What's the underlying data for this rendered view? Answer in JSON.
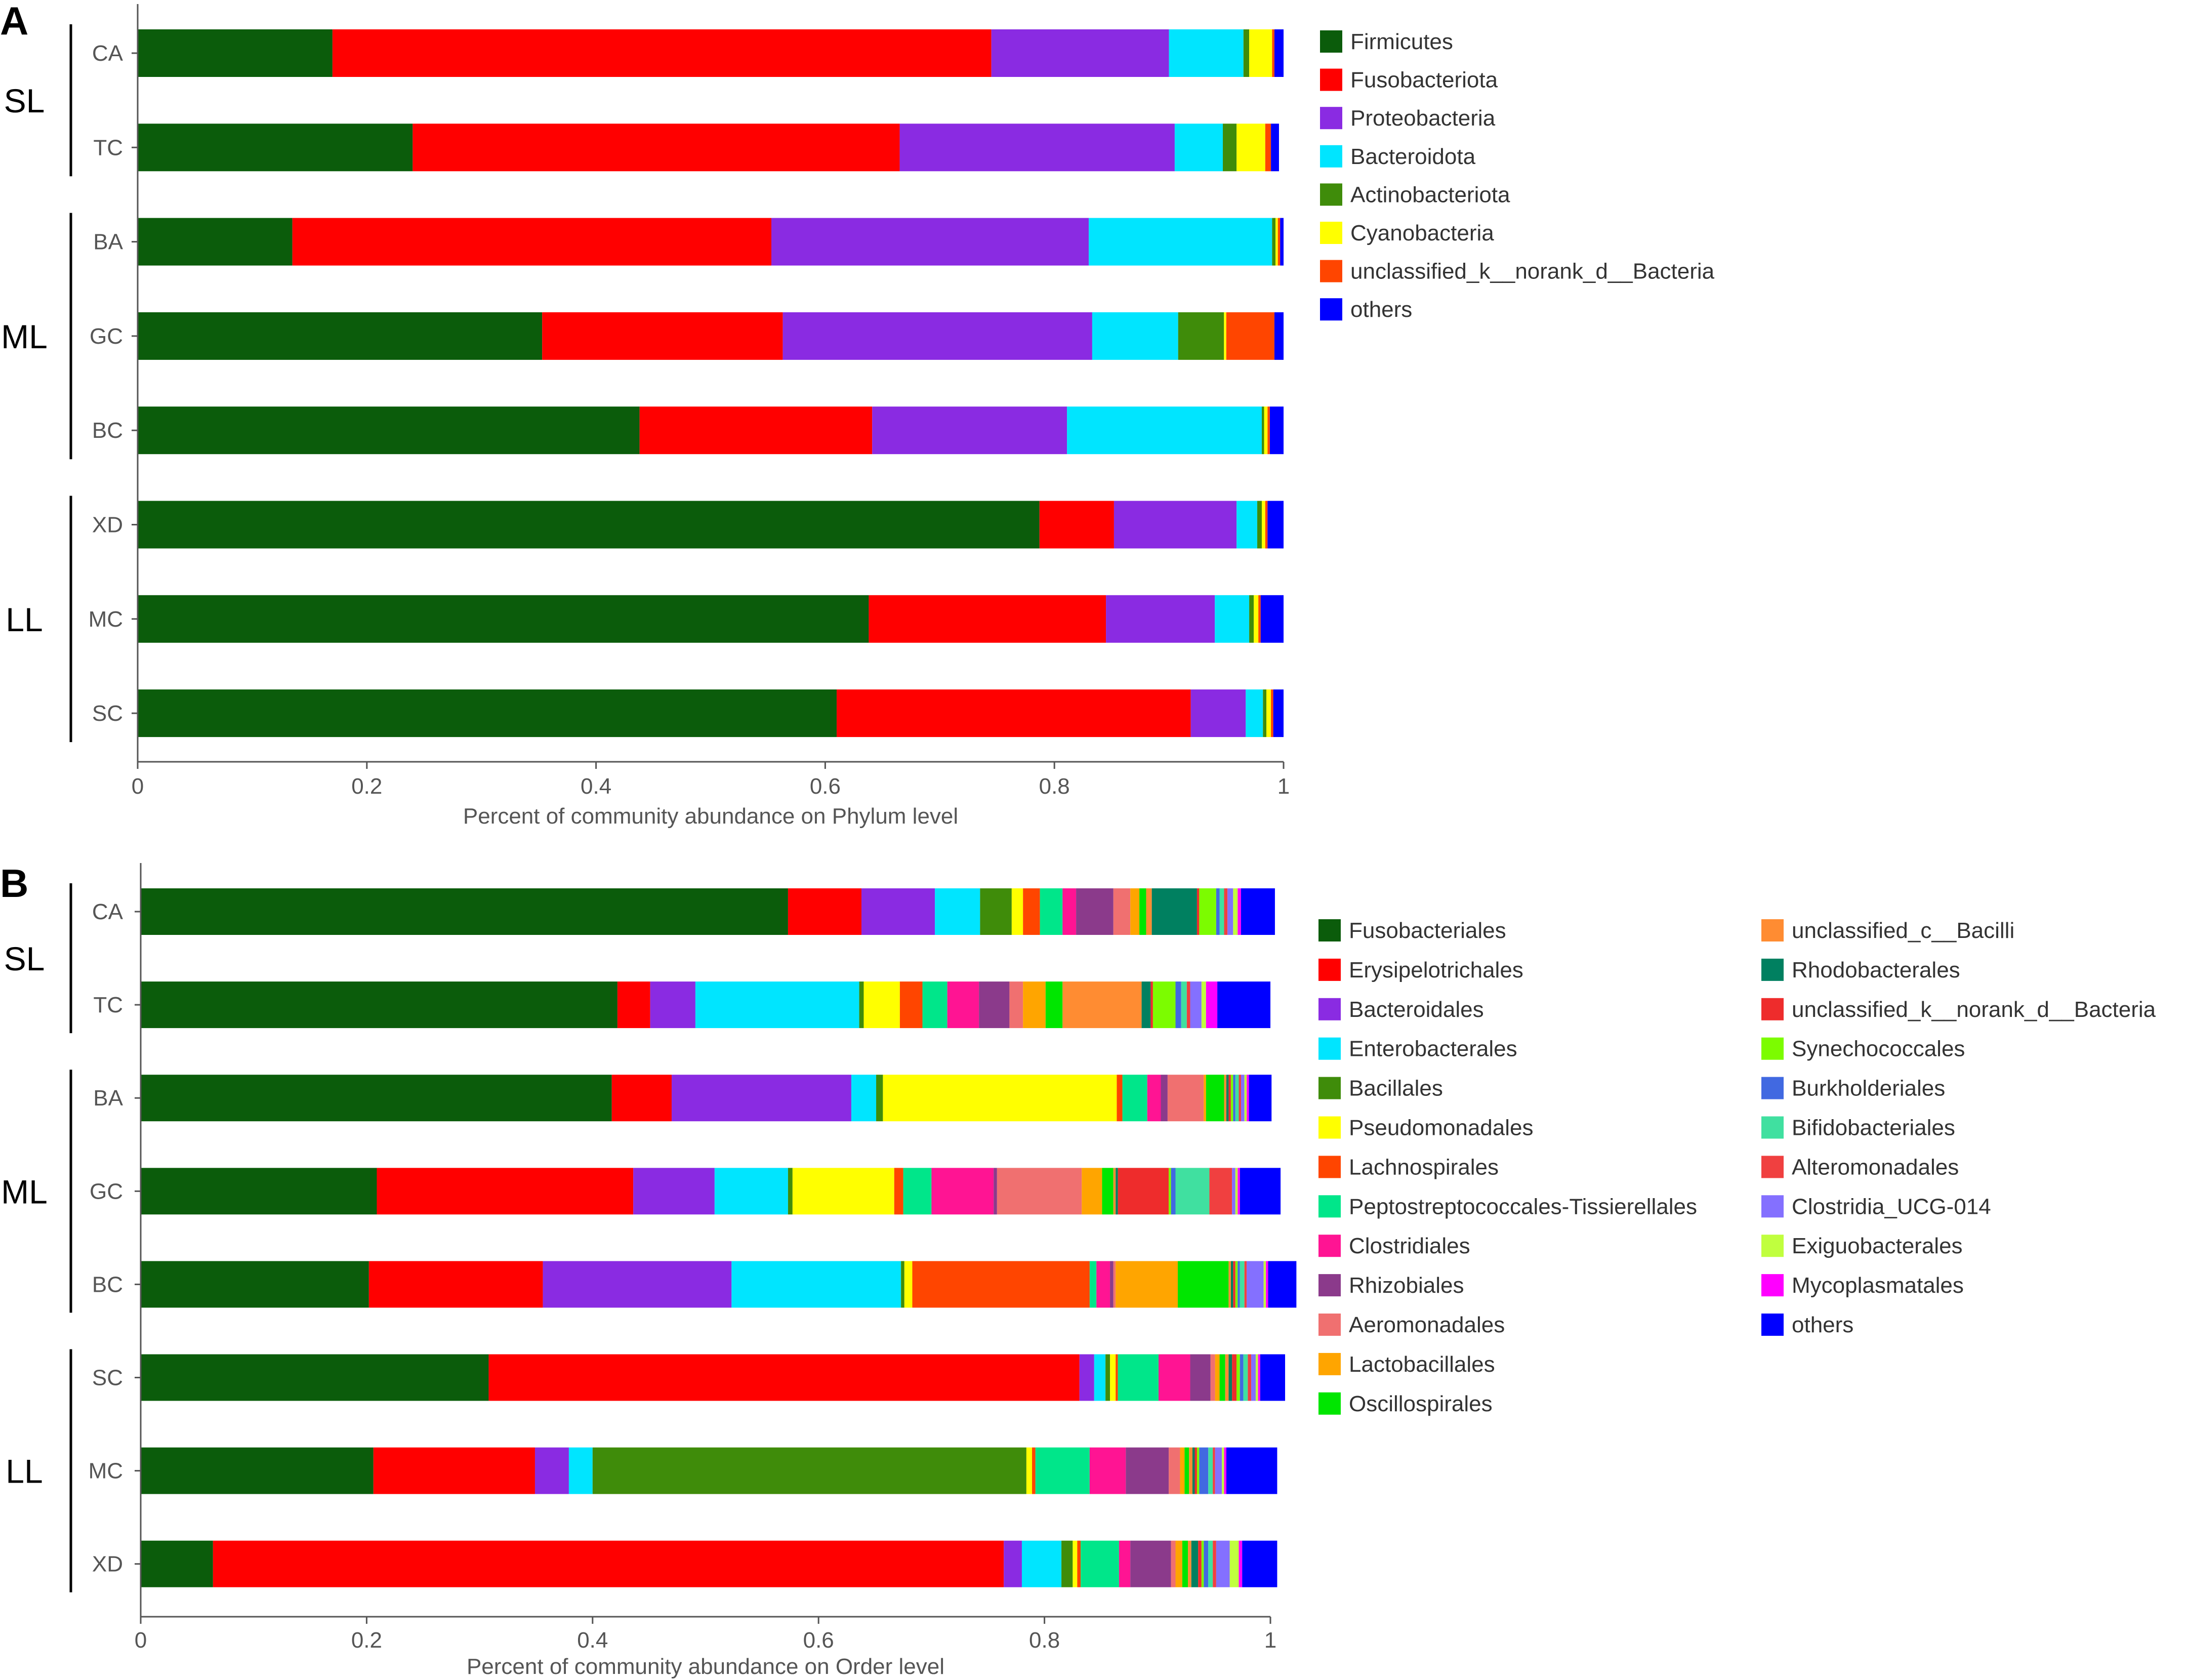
{
  "chart_data": [
    {
      "type": "bar",
      "orientation": "horizontal",
      "stacked": true,
      "panel_label": "A",
      "xlabel": "Percent of community abundance on Phylum level",
      "xlim": [
        0,
        1
      ],
      "xticks": [
        "0",
        "0.2",
        "0.4",
        "0.6",
        "0.8",
        "1"
      ],
      "categories": [
        "CA",
        "TC",
        "BA",
        "GC",
        "BC",
        "XD",
        "MC",
        "SC"
      ],
      "groups": [
        {
          "label": "SL",
          "members": [
            "CA",
            "TC"
          ]
        },
        {
          "label": "ML",
          "members": [
            "BA",
            "GC",
            "BC"
          ]
        },
        {
          "label": "LL",
          "members": [
            "XD",
            "MC",
            "SC"
          ]
        }
      ],
      "series": [
        {
          "name": "Firmicutes",
          "color": "#0b5c0b",
          "values": [
            0.17,
            0.24,
            0.135,
            0.353,
            0.438,
            0.787,
            0.638,
            0.61
          ]
        },
        {
          "name": "Fusobacteriota",
          "color": "#ff0000",
          "values": [
            0.575,
            0.425,
            0.418,
            0.21,
            0.203,
            0.065,
            0.207,
            0.309
          ]
        },
        {
          "name": "Proteobacteria",
          "color": "#8a2be2",
          "values": [
            0.155,
            0.24,
            0.277,
            0.27,
            0.17,
            0.107,
            0.095,
            0.048
          ]
        },
        {
          "name": "Bacteroidota",
          "color": "#00e5ff",
          "values": [
            0.065,
            0.042,
            0.16,
            0.075,
            0.17,
            0.018,
            0.03,
            0.015
          ]
        },
        {
          "name": "Actinobacteriota",
          "color": "#3f8c0a",
          "values": [
            0.005,
            0.012,
            0.003,
            0.04,
            0.002,
            0.004,
            0.004,
            0.003
          ]
        },
        {
          "name": "Cyanobacteria",
          "color": "#ffff00",
          "values": [
            0.02,
            0.025,
            0.002,
            0.002,
            0.003,
            0.003,
            0.004,
            0.004
          ]
        },
        {
          "name": "unclassified_k__norank_d__Bacteria",
          "color": "#ff4500",
          "values": [
            0.002,
            0.005,
            0.002,
            0.042,
            0.002,
            0.002,
            0.002,
            0.002
          ]
        },
        {
          "name": "others",
          "color": "#0000ff",
          "values": [
            0.008,
            0.007,
            0.003,
            0.008,
            0.012,
            0.014,
            0.02,
            0.009
          ]
        }
      ]
    },
    {
      "type": "bar",
      "orientation": "horizontal",
      "stacked": true,
      "panel_label": "B",
      "xlabel": "Percent of community abundance on Order level",
      "xlim": [
        0,
        1
      ],
      "xticks": [
        "0",
        "0.2",
        "0.4",
        "0.6",
        "0.8",
        "1"
      ],
      "categories": [
        "CA",
        "TC",
        "BA",
        "GC",
        "BC",
        "SC",
        "MC",
        "XD"
      ],
      "groups": [
        {
          "label": "SL",
          "members": [
            "CA",
            "TC"
          ]
        },
        {
          "label": "ML",
          "members": [
            "BA",
            "GC",
            "BC"
          ]
        },
        {
          "label": "LL",
          "members": [
            "SC",
            "MC",
            "XD"
          ]
        }
      ],
      "series": [
        {
          "name": "Fusobacteriales",
          "color": "#0b5c0b",
          "values": [
            0.573,
            0.422,
            0.417,
            0.209,
            0.202,
            0.308,
            0.206,
            0.064
          ]
        },
        {
          "name": "Erysipelotrichales",
          "color": "#ff0000",
          "values": [
            0.065,
            0.029,
            0.053,
            0.227,
            0.154,
            0.523,
            0.143,
            0.7
          ]
        },
        {
          "name": "Bacteroidales",
          "color": "#8a2be2",
          "values": [
            0.065,
            0.04,
            0.159,
            0.072,
            0.167,
            0.013,
            0.03,
            0.016
          ]
        },
        {
          "name": "Enterobacterales",
          "color": "#00e5ff",
          "values": [
            0.04,
            0.145,
            0.022,
            0.065,
            0.15,
            0.01,
            0.021,
            0.035
          ]
        },
        {
          "name": "Bacillales",
          "color": "#3f8c0a",
          "values": [
            0.028,
            0.004,
            0.006,
            0.004,
            0.003,
            0.004,
            0.384,
            0.01
          ]
        },
        {
          "name": "Pseudomonadales",
          "color": "#ffff00",
          "values": [
            0.01,
            0.032,
            0.207,
            0.09,
            0.007,
            0.005,
            0.005,
            0.004
          ]
        },
        {
          "name": "Lachnospirales",
          "color": "#ff4500",
          "values": [
            0.015,
            0.02,
            0.005,
            0.008,
            0.157,
            0.002,
            0.003,
            0.003
          ]
        },
        {
          "name": "Peptostreptococcales-Tissierellales",
          "color": "#00e68a",
          "values": [
            0.02,
            0.022,
            0.022,
            0.025,
            0.006,
            0.036,
            0.048,
            0.034
          ]
        },
        {
          "name": "Clostridiales",
          "color": "#ff1493",
          "values": [
            0.012,
            0.028,
            0.012,
            0.055,
            0.012,
            0.028,
            0.032,
            0.01
          ]
        },
        {
          "name": "Rhizobiales",
          "color": "#8b3a8b",
          "values": [
            0.033,
            0.027,
            0.006,
            0.003,
            0.003,
            0.018,
            0.038,
            0.036
          ]
        },
        {
          "name": "Aeromonadales",
          "color": "#f07070",
          "values": [
            0.015,
            0.012,
            0.032,
            0.075,
            0.002,
            0.004,
            0.01,
            0.004
          ]
        },
        {
          "name": "Lactobacillales",
          "color": "#ffa500",
          "values": [
            0.008,
            0.02,
            0.002,
            0.018,
            0.055,
            0.004,
            0.004,
            0.006
          ]
        },
        {
          "name": "Oscillospirales",
          "color": "#00e600",
          "values": [
            0.006,
            0.015,
            0.016,
            0.01,
            0.045,
            0.005,
            0.004,
            0.005
          ]
        },
        {
          "name": "unclassified_c__Bacilli",
          "color": "#ff8c32",
          "values": [
            0.005,
            0.07,
            0.002,
            0.002,
            0.002,
            0.003,
            0.003,
            0.003
          ]
        },
        {
          "name": "Rhodobacterales",
          "color": "#008060",
          "values": [
            0.04,
            0.008,
            0.002,
            0.002,
            0.002,
            0.003,
            0.002,
            0.006
          ]
        },
        {
          "name": "unclassified_k__norank_d__Bacteria",
          "color": "#ee2c2c",
          "values": [
            0.002,
            0.002,
            0.002,
            0.045,
            0.002,
            0.004,
            0.002,
            0.003
          ]
        },
        {
          "name": "Synechococcales",
          "color": "#7cfc00",
          "values": [
            0.015,
            0.02,
            0.002,
            0.002,
            0.002,
            0.003,
            0.002,
            0.002
          ]
        },
        {
          "name": "Burkholderiales",
          "color": "#4169e1",
          "values": [
            0.003,
            0.005,
            0.002,
            0.004,
            0.002,
            0.003,
            0.008,
            0.004
          ]
        },
        {
          "name": "Bifidobacteriales",
          "color": "#40e0a0",
          "values": [
            0.004,
            0.005,
            0.003,
            0.03,
            0.004,
            0.004,
            0.004,
            0.004
          ]
        },
        {
          "name": "Alteromonadales",
          "color": "#f04040",
          "values": [
            0.003,
            0.003,
            0.002,
            0.02,
            0.002,
            0.003,
            0.002,
            0.003
          ]
        },
        {
          "name": "Clostridia_UCG-014",
          "color": "#8470ff",
          "values": [
            0.005,
            0.01,
            0.003,
            0.003,
            0.015,
            0.004,
            0.006,
            0.012
          ]
        },
        {
          "name": "Exiguobacterales",
          "color": "#c0ff3e",
          "values": [
            0.004,
            0.004,
            0.002,
            0.002,
            0.002,
            0.002,
            0.002,
            0.008
          ]
        },
        {
          "name": "Mycoplasmatales",
          "color": "#ff00ff",
          "values": [
            0.003,
            0.01,
            0.002,
            0.002,
            0.002,
            0.002,
            0.002,
            0.003
          ]
        },
        {
          "name": "others",
          "color": "#0000ff",
          "values": [
            0.03,
            0.047,
            0.02,
            0.036,
            0.025,
            0.022,
            0.045,
            0.031
          ]
        }
      ]
    }
  ]
}
